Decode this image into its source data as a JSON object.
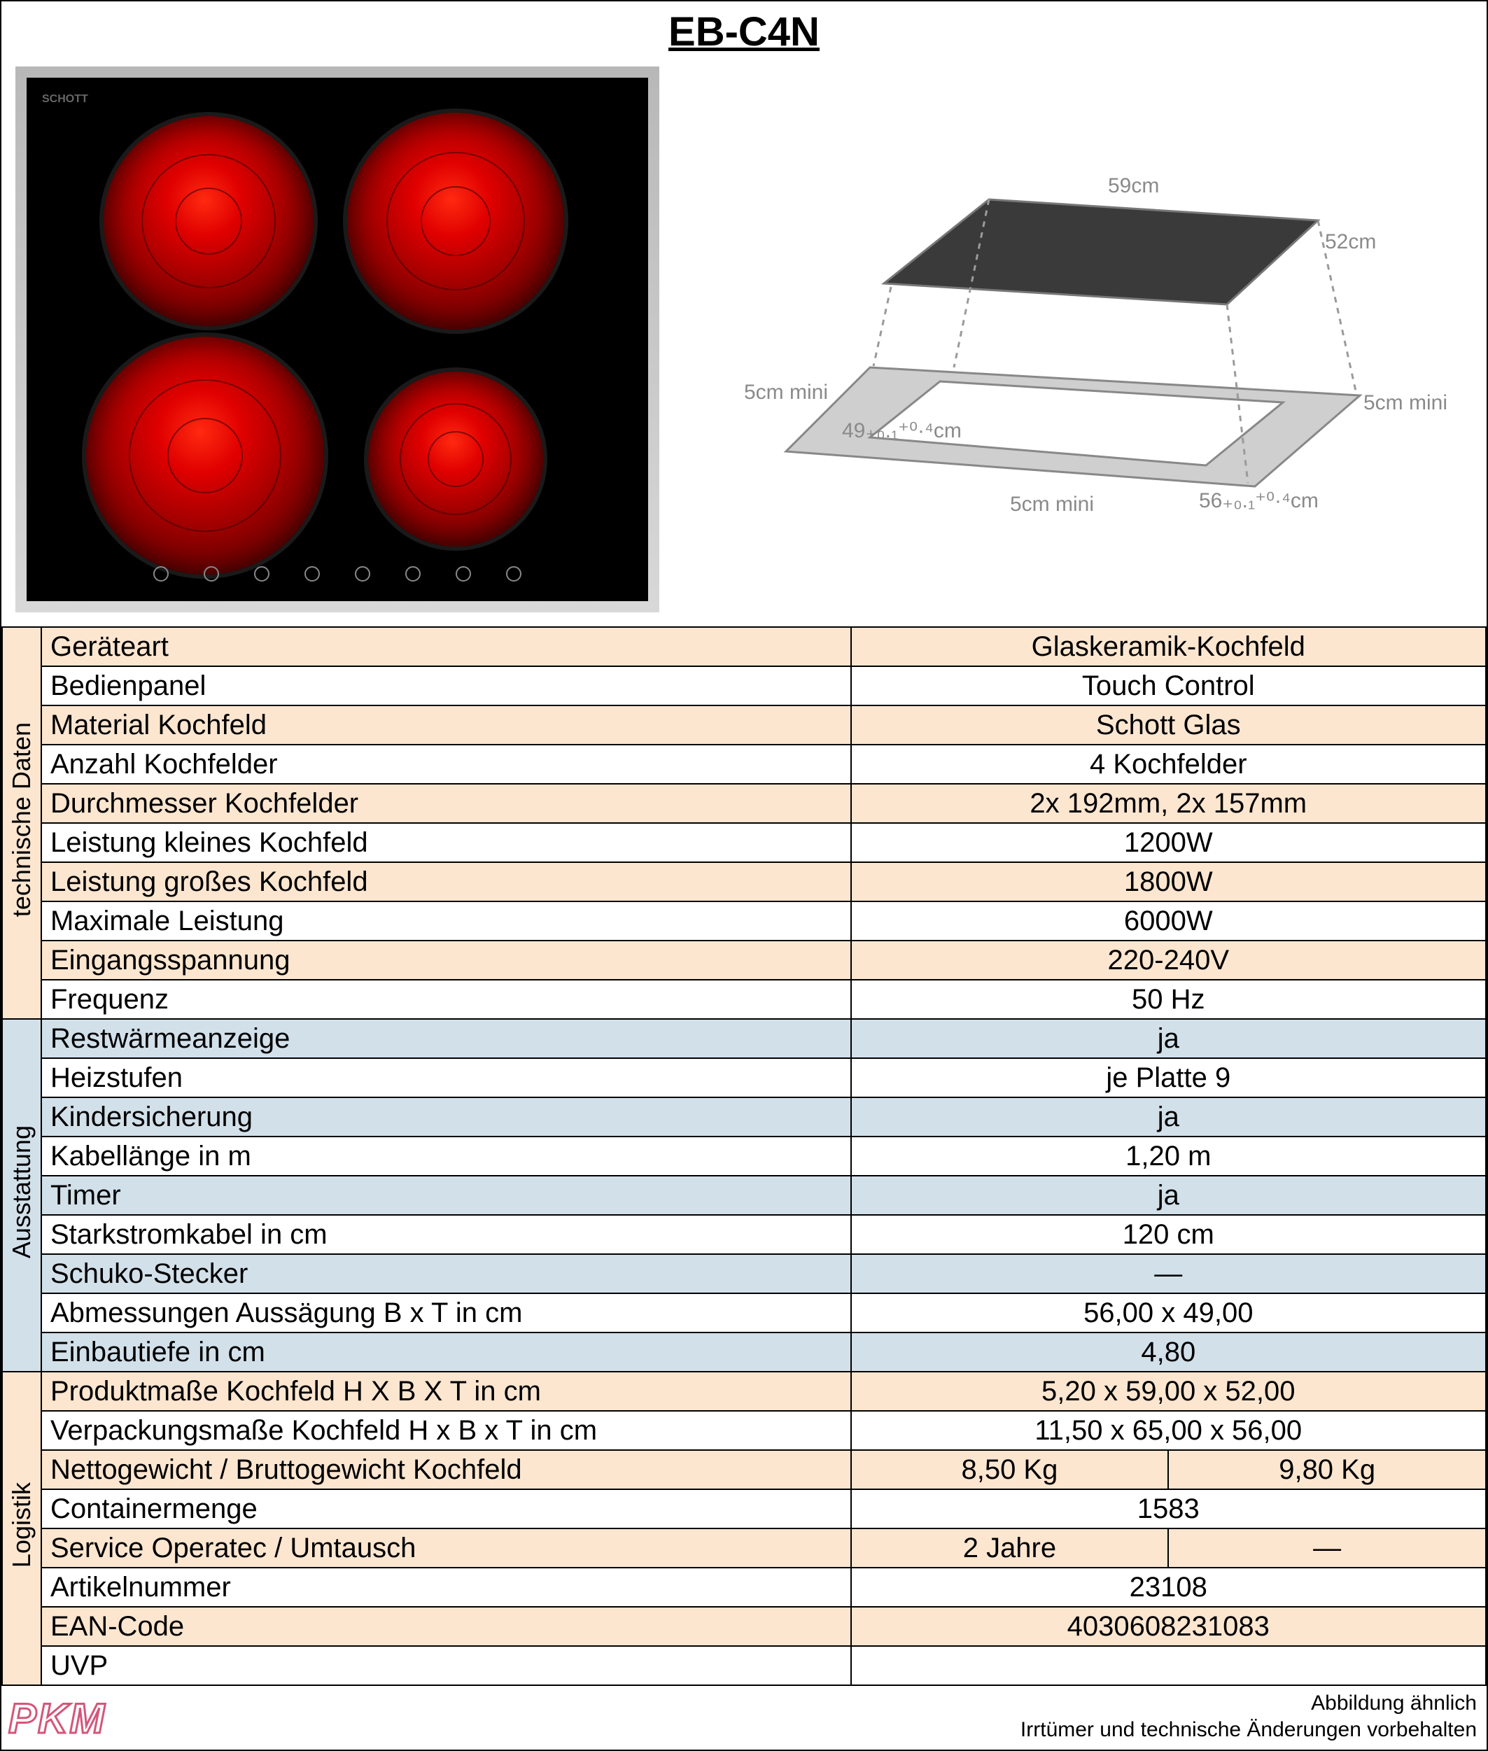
{
  "title": "EB-C4N",
  "colors": {
    "section_peach": "#fce6d0",
    "section_blue": "#d2e0ea",
    "border": "#000000",
    "burner_red": "#e00000",
    "logo_outline": "#d4567a",
    "diagram_gray": "#9a9a9a"
  },
  "diagram_labels": {
    "top_w": "59cm",
    "top_d": "52cm",
    "base_w": "56₊₀.₁⁺⁰·⁴cm",
    "base_d": "49₊₀.₁⁺⁰·⁴cm",
    "margin_left": "5cm mini",
    "margin_right": "5cm mini",
    "margin_front": "5cm mini"
  },
  "sections": [
    {
      "id": "tech",
      "title": "technische Daten",
      "bg": "#fce6d0",
      "rows": [
        {
          "label": "Geräteart",
          "v": [
            "Glaskeramik-Kochfeld"
          ]
        },
        {
          "label": "Bedienpanel",
          "v": [
            "Touch Control"
          ]
        },
        {
          "label": "Material Kochfeld",
          "v": [
            "Schott Glas"
          ]
        },
        {
          "label": "Anzahl Kochfelder",
          "v": [
            "4 Kochfelder"
          ]
        },
        {
          "label": "Durchmesser Kochfelder",
          "v": [
            "2x 192mm, 2x 157mm"
          ]
        },
        {
          "label": "Leistung kleines Kochfeld",
          "v": [
            "1200W"
          ]
        },
        {
          "label": "Leistung großes Kochfeld",
          "v": [
            "1800W"
          ]
        },
        {
          "label": "Maximale Leistung",
          "v": [
            "6000W"
          ]
        },
        {
          "label": "Eingangsspannung",
          "v": [
            "220-240V"
          ]
        },
        {
          "label": "Frequenz",
          "v": [
            "50 Hz"
          ]
        }
      ]
    },
    {
      "id": "equip",
      "title": "Ausstattung",
      "bg": "#d2e0ea",
      "rows": [
        {
          "label": "Restwärmeanzeige",
          "v": [
            "ja"
          ]
        },
        {
          "label": "Heizstufen",
          "v": [
            "je Platte 9"
          ]
        },
        {
          "label": "Kindersicherung",
          "v": [
            "ja"
          ]
        },
        {
          "label": "Kabellänge in m",
          "v": [
            "1,20 m"
          ]
        },
        {
          "label": "Timer",
          "v": [
            "ja"
          ]
        },
        {
          "label": "Starkstromkabel in cm",
          "v": [
            "120 cm"
          ]
        },
        {
          "label": "Schuko-Stecker",
          "v": [
            "—"
          ]
        },
        {
          "label": "Abmessungen Aussägung B x T in cm",
          "v": [
            "56,00 x 49,00"
          ]
        },
        {
          "label": "Einbautiefe in cm",
          "v": [
            "4,80"
          ]
        }
      ]
    },
    {
      "id": "log",
      "title": "Logistik",
      "bg": "#fce6d0",
      "rows": [
        {
          "label": "Produktmaße Kochfeld H X B X T in cm",
          "v": [
            "5,20 x 59,00 x 52,00"
          ]
        },
        {
          "label": "Verpackungsmaße Kochfeld H x B x T in cm",
          "v": [
            "11,50 x 65,00 x 56,00"
          ]
        },
        {
          "label": "Nettogewicht / Bruttogewicht Kochfeld",
          "v": [
            "8,50 Kg",
            "9,80 Kg"
          ]
        },
        {
          "label": "Containermenge",
          "v": [
            "1583"
          ]
        },
        {
          "label": "Service Operatec / Umtausch",
          "v": [
            "2 Jahre",
            "—"
          ]
        },
        {
          "label": "Artikelnummer",
          "v": [
            "23108"
          ]
        },
        {
          "label": "EAN-Code",
          "v": [
            "4030608231083"
          ]
        },
        {
          "label": "UVP",
          "v": [
            ""
          ]
        }
      ]
    }
  ],
  "footer": {
    "logo": "PKM",
    "line1": "Abbildung ähnlich",
    "line2": "Irrtümer und technische Änderungen vorbehalten"
  }
}
